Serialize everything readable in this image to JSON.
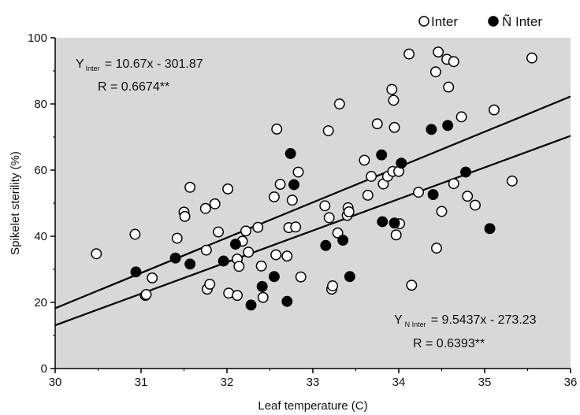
{
  "chart_data": {
    "type": "scatter",
    "xlabel": "Leaf temperature (C)",
    "ylabel": "Spikelet sterility (%)",
    "xlim": [
      30,
      36
    ],
    "ylim": [
      0,
      100
    ],
    "xticks": [
      "30",
      "31",
      "32",
      "33",
      "34",
      "35",
      "36"
    ],
    "yticks": [
      "0",
      "20",
      "40",
      "60",
      "80",
      "100"
    ],
    "background": "#d8d8d8",
    "grid": false,
    "legend_position": "top-right",
    "series": [
      {
        "name": "Inter",
        "marker": "open-circle",
        "color": "#ffffff",
        "points": [
          [
            30.48,
            34.7
          ],
          [
            30.93,
            40.6
          ],
          [
            31.05,
            22.1
          ],
          [
            31.06,
            22.4
          ],
          [
            31.13,
            27.4
          ],
          [
            31.42,
            39.4
          ],
          [
            31.5,
            47.3
          ],
          [
            31.51,
            46.0
          ],
          [
            31.57,
            54.8
          ],
          [
            31.75,
            48.4
          ],
          [
            31.76,
            35.8
          ],
          [
            31.77,
            24.0
          ],
          [
            31.8,
            25.5
          ],
          [
            31.86,
            49.8
          ],
          [
            31.9,
            41.3
          ],
          [
            32.01,
            54.3
          ],
          [
            32.02,
            22.8
          ],
          [
            32.12,
            22.1
          ],
          [
            32.12,
            33.1
          ],
          [
            32.14,
            30.9
          ],
          [
            32.18,
            38.5
          ],
          [
            32.22,
            41.6
          ],
          [
            32.25,
            35.2
          ],
          [
            32.36,
            42.7
          ],
          [
            32.4,
            31.0
          ],
          [
            32.42,
            21.5
          ],
          [
            32.55,
            51.9
          ],
          [
            32.57,
            34.4
          ],
          [
            32.58,
            72.4
          ],
          [
            32.62,
            55.7
          ],
          [
            32.7,
            34.0
          ],
          [
            32.72,
            42.6
          ],
          [
            32.76,
            50.9
          ],
          [
            32.8,
            42.8
          ],
          [
            32.83,
            59.4
          ],
          [
            32.86,
            27.7
          ],
          [
            33.14,
            49.2
          ],
          [
            33.18,
            71.9
          ],
          [
            33.19,
            45.6
          ],
          [
            33.22,
            24.0
          ],
          [
            33.23,
            25.0
          ],
          [
            33.29,
            41.0
          ],
          [
            33.31,
            80.0
          ],
          [
            33.4,
            46.3
          ],
          [
            33.41,
            48.6
          ],
          [
            33.42,
            47.4
          ],
          [
            33.6,
            63.0
          ],
          [
            33.64,
            52.4
          ],
          [
            33.68,
            58.1
          ],
          [
            33.75,
            74.0
          ],
          [
            33.82,
            55.8
          ],
          [
            33.87,
            58.1
          ],
          [
            33.92,
            84.4
          ],
          [
            33.93,
            59.6
          ],
          [
            33.94,
            81.1
          ],
          [
            33.95,
            72.9
          ],
          [
            33.97,
            40.4
          ],
          [
            34.0,
            59.6
          ],
          [
            34.01,
            43.8
          ],
          [
            34.12,
            95.1
          ],
          [
            34.15,
            25.2
          ],
          [
            34.23,
            53.3
          ],
          [
            34.43,
            89.7
          ],
          [
            34.44,
            36.4
          ],
          [
            34.46,
            95.7
          ],
          [
            34.5,
            47.5
          ],
          [
            34.56,
            93.5
          ],
          [
            34.58,
            85.1
          ],
          [
            34.64,
            92.8
          ],
          [
            34.64,
            55.9
          ],
          [
            34.73,
            76.1
          ],
          [
            34.8,
            52.1
          ],
          [
            34.89,
            49.4
          ],
          [
            35.11,
            78.2
          ],
          [
            35.32,
            56.7
          ],
          [
            35.55,
            93.9
          ]
        ]
      },
      {
        "name": "Ñ Inter",
        "marker": "filled-circle",
        "color": "#000000",
        "points": [
          [
            30.94,
            29.2
          ],
          [
            31.4,
            33.4
          ],
          [
            31.57,
            31.6
          ],
          [
            31.96,
            32.5
          ],
          [
            32.1,
            37.6
          ],
          [
            32.28,
            19.2
          ],
          [
            32.41,
            24.8
          ],
          [
            32.55,
            27.8
          ],
          [
            32.7,
            20.3
          ],
          [
            32.74,
            65.0
          ],
          [
            32.78,
            55.6
          ],
          [
            33.15,
            37.2
          ],
          [
            33.35,
            38.8
          ],
          [
            33.43,
            27.8
          ],
          [
            33.8,
            64.6
          ],
          [
            33.81,
            44.4
          ],
          [
            33.95,
            44.0
          ],
          [
            34.03,
            62.1
          ],
          [
            34.38,
            72.3
          ],
          [
            34.4,
            52.6
          ],
          [
            34.57,
            73.5
          ],
          [
            34.78,
            59.4
          ],
          [
            35.06,
            42.3
          ]
        ]
      }
    ],
    "fit_lines": [
      {
        "series": "Inter",
        "slope": 10.67,
        "intercept": -301.87
      },
      {
        "series": "Ñ Inter",
        "slope": 9.5437,
        "intercept": -273.23
      }
    ],
    "legend": [
      "Inter",
      "Ñ Inter"
    ],
    "annotations": {
      "inter": {
        "eq_prefix": "Y",
        "eq_sub": "Inter",
        "eq_rhs": "= 10.67x - 301.87",
        "r_text": "R = 0.6674**"
      },
      "ninter": {
        "eq_prefix": "Y",
        "eq_sub": "N Inter",
        "eq_rhs": "= 9.5437x - 273.23",
        "r_text": "R = 0.6393**"
      }
    }
  }
}
